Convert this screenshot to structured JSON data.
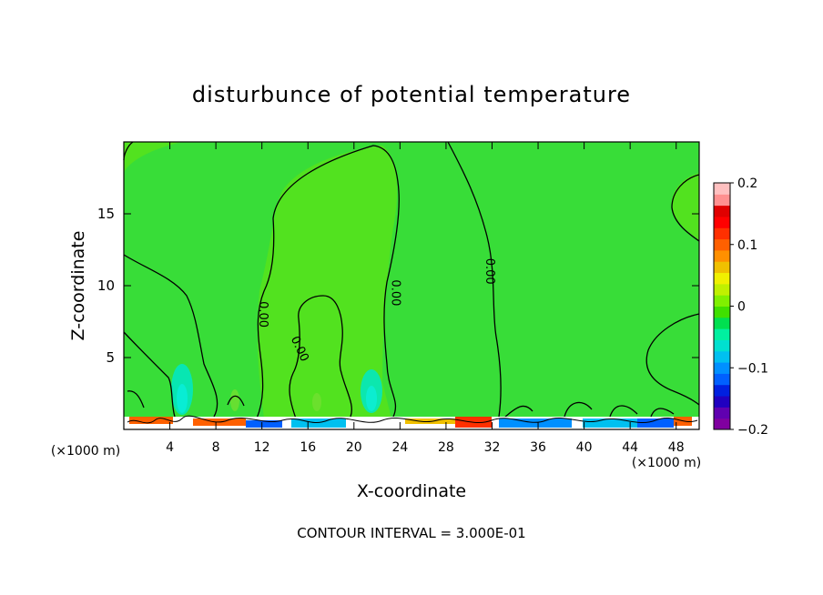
{
  "chart_data": {
    "type": "heatmap",
    "title": "disturbunce of potential temperature",
    "xlabel": "X-coordinate",
    "ylabel": "Z-coordinate",
    "x_unit_left": "(×1000 m)",
    "x_unit_right": "(×1000 m)",
    "xlim": [
      0,
      50
    ],
    "ylim": [
      0,
      20
    ],
    "x_ticks": [
      4,
      8,
      12,
      16,
      20,
      24,
      28,
      32,
      36,
      40,
      44,
      48
    ],
    "y_ticks": [
      5,
      10,
      15
    ],
    "contour_labels": [
      {
        "text": "0.00",
        "x": 11.8,
        "z": 8.0
      },
      {
        "text": "0.00",
        "x": 15.0,
        "z": 5.5
      },
      {
        "text": "0.00",
        "x": 23.3,
        "z": 9.5
      },
      {
        "text": "0.00",
        "x": 31.5,
        "z": 11.0
      }
    ],
    "footer": "CONTOUR INTERVAL = 3.000E-01",
    "colorbar": {
      "ticks": [
        {
          "label": "0.2",
          "value": 0.2
        },
        {
          "label": "0.1",
          "value": 0.1
        },
        {
          "label": "0",
          "value": 0
        },
        {
          "label": "−0.1",
          "value": -0.1
        },
        {
          "label": "−0.2",
          "value": -0.2
        }
      ],
      "range": [
        -0.2,
        0.2
      ],
      "colors": [
        "#8000a0",
        "#6000b0",
        "#2000c0",
        "#0020e0",
        "#0060ff",
        "#0090ff",
        "#00c0f0",
        "#00e0d0",
        "#00f0a0",
        "#00e050",
        "#40e000",
        "#80f000",
        "#c0f000",
        "#f0f000",
        "#f0c000",
        "#ff9000",
        "#ff6000",
        "#ff3000",
        "#ff0000",
        "#e00000",
        "#ff9090",
        "#ffc0c0"
      ]
    },
    "field_color_background": "#38dd38",
    "field_color_positive_region": "#52e21f",
    "field_color_negative_plume": "#00e8c8"
  }
}
